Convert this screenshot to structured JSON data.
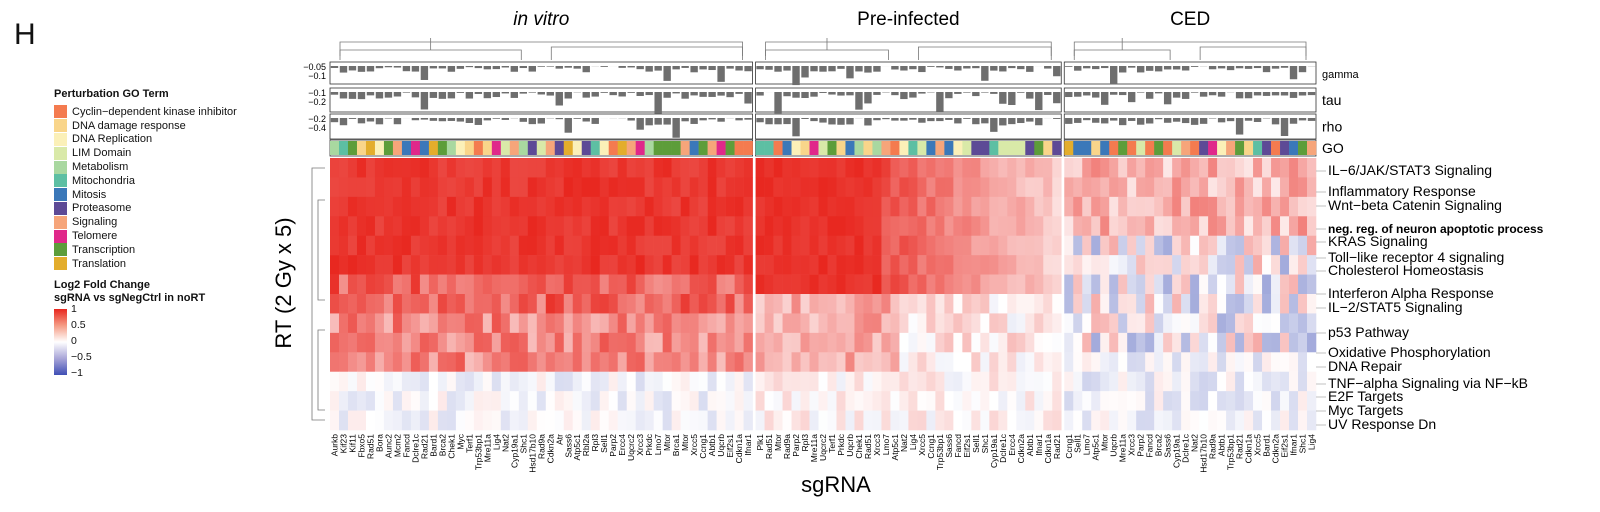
{
  "panel_letter": "H",
  "legend": {
    "go_title": "Perturbation GO Term",
    "go_terms": [
      {
        "label": "Cyclin−dependent kinase inhibitor",
        "color": "#f47b4f"
      },
      {
        "label": "DNA damage response",
        "color": "#f9d58a"
      },
      {
        "label": "DNA Replication",
        "color": "#fbf0b8"
      },
      {
        "label": "LIM Domain",
        "color": "#d9e9a8"
      },
      {
        "label": "Metabolism",
        "color": "#a9d8a0"
      },
      {
        "label": "Mitochondria",
        "color": "#5dbfa3"
      },
      {
        "label": "Mitosis",
        "color": "#3b78b9"
      },
      {
        "label": "Proteasome",
        "color": "#5d4a96"
      },
      {
        "label": "Signaling",
        "color": "#f6a57a"
      },
      {
        "label": "Telomere",
        "color": "#e0288a"
      },
      {
        "label": "Transcription",
        "color": "#5d9d3a"
      },
      {
        "label": "Translation",
        "color": "#e3ad2c"
      }
    ],
    "fc_title_1": "Log2 Fold Change",
    "fc_title_2": "sgRNA vs sgNegCtrl in noRT",
    "fc_ticks": [
      "1",
      "0.5",
      "0",
      "−0.5",
      "−1"
    ]
  },
  "chart_data": {
    "type": "heatmap",
    "groups": [
      "in vitro",
      "Pre-infected",
      "CED"
    ],
    "track_labels": [
      "gamma",
      "tau",
      "rho",
      "GO"
    ],
    "track_ticks": {
      "gamma": [
        "−0.05",
        "−0.1"
      ],
      "tau": [
        "−0.1",
        "−0.2"
      ],
      "rho": [
        "−0.2",
        "−0.4"
      ]
    },
    "ylabel": "RT (2 Gy x 5)",
    "xlabel": "sgRNA",
    "color_scale": {
      "min": -1,
      "max": 1,
      "low": "#3f4fb5",
      "mid": "#ffffff",
      "high": "#e8271f"
    },
    "rows": [
      "IL−6/JAK/STAT3 Signaling",
      "Inflammatory Response",
      "Wnt−beta Catenin Signaling",
      "neg. reg. of neuron apoptotic process",
      "KRAS Signaling",
      "Toll−like receptor 4 signaling",
      "Cholesterol Homeostasis",
      "Interferon Alpha Response",
      "IL−2/STAT5 Signaling",
      "p53 Pathway",
      "Oxidative Phosphorylation",
      "DNA Repair",
      "TNF−alpha Signaling via NF−kB",
      "E2F Targets",
      "Myc Targets",
      "UV Response Dn"
    ],
    "columns": {
      "in vitro": [
        "Aurkb",
        "Kif23",
        "Kif11",
        "Fbxo5",
        "Rad51",
        "Bora",
        "Aunc2",
        "Mcm2",
        "Fancd",
        "Dclre1c",
        "Rad21",
        "Bard1",
        "Brca2",
        "Chek1",
        "Myc",
        "Terf1",
        "Trp53bp1",
        "Mre11a",
        "Lig4",
        "Nat2",
        "Cyp19a1",
        "Shc1",
        "Hsd17b10",
        "Rad9a",
        "Cdkn2a",
        "Atr",
        "Sass6",
        "Atp5c1",
        "Rbl2a",
        "Rpl3",
        "Sell1",
        "Parp2",
        "Ercc4",
        "Uqcrc2",
        "Xrcc3",
        "Prkdc",
        "Lmo7",
        "Mtor",
        "Brca1",
        "Mtor",
        "Xrcc5",
        "Ccng1",
        "Abtb1",
        "Uqcrb",
        "Eif2s1",
        "Cdkn1a",
        "Ifnar1"
      ],
      "Pre-infected": [
        "Plk1",
        "Rad51",
        "Mtor",
        "Rad9a",
        "Parp2",
        "Rpl3",
        "Mre11a",
        "Uqcrc2",
        "Terf1",
        "Prkdc",
        "Uqcrb",
        "Chek1",
        "Rad51",
        "Xrcc3",
        "Lmo7",
        "Atp5c1",
        "Nat2",
        "Lig4",
        "Xrcc5",
        "Ccng1",
        "Trp53bp1",
        "Sass6",
        "Fancd",
        "Eif2s1",
        "Sell1",
        "Shc1",
        "Cyp19a1",
        "Dclre1c",
        "Ercc4",
        "Cdkn2a",
        "Abtb1",
        "Ifnar1",
        "Cdkn1a",
        "Rad21"
      ],
      "CED": [
        "Ccng1",
        "Sell1",
        "Lmo7",
        "Atp5c1",
        "Mtor",
        "Uqcrb",
        "Mre11a",
        "Xrcc3",
        "Parp2",
        "Fancd",
        "Brca2",
        "Sass6",
        "Cyp19a1",
        "Dclre1c",
        "Nat2",
        "Hsd17b10",
        "Rad9a",
        "Abtb1",
        "Trp53bp1",
        "Rad21",
        "Cdkn1a",
        "Xrcc5",
        "Bard1",
        "Cdkn2a",
        "Eif2s1",
        "Ifnar1",
        "Shc1",
        "Lig4"
      ]
    }
  }
}
